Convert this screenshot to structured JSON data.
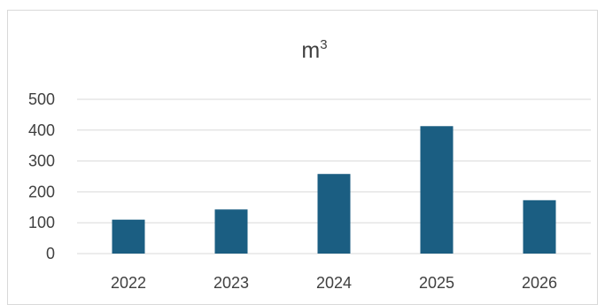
{
  "chart_data": {
    "type": "bar",
    "title": "m",
    "title_superscript": "3",
    "categories": [
      "2022",
      "2023",
      "2024",
      "2025",
      "2026"
    ],
    "values": [
      110,
      143,
      258,
      413,
      173
    ],
    "ylim": [
      0,
      500
    ],
    "yticks": [
      "0",
      "100",
      "200",
      "300",
      "400",
      "500"
    ],
    "grid": true,
    "legend": "none",
    "bar_color": "#1b5e82"
  }
}
